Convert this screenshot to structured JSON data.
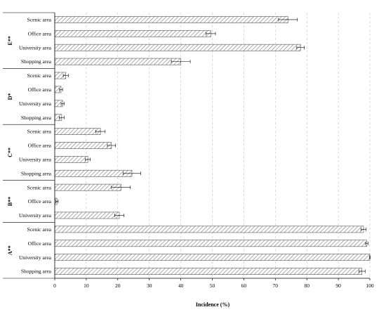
{
  "chart_data": {
    "type": "bar",
    "orientation": "horizontal",
    "xlabel": "Incidence (%)",
    "xlim": [
      0,
      100
    ],
    "xticks": [
      0,
      10,
      20,
      30,
      40,
      50,
      60,
      70,
      80,
      90,
      100
    ],
    "grid": "vertical dashed",
    "groups": [
      {
        "label": "E**",
        "bars": [
          {
            "category": "Scenic area",
            "value": 74,
            "error": 3
          },
          {
            "category": "Office area",
            "value": 49.5,
            "error": 1.5
          },
          {
            "category": "University area",
            "value": 78,
            "error": 1.2
          },
          {
            "category": "Shopping area",
            "value": 40,
            "error": 3
          }
        ]
      },
      {
        "label": "D*",
        "bars": [
          {
            "category": "Scenic area",
            "value": 3.5,
            "error": 0.8
          },
          {
            "category": "Office area",
            "value": 2,
            "error": 0.5
          },
          {
            "category": "University area",
            "value": 2.5,
            "error": 0.5
          },
          {
            "category": "Shopping area",
            "value": 2.2,
            "error": 0.8
          }
        ]
      },
      {
        "label": "C**",
        "bars": [
          {
            "category": "Scenic area",
            "value": 14.5,
            "error": 1.5
          },
          {
            "category": "Office area",
            "value": 18,
            "error": 1.3
          },
          {
            "category": "University area",
            "value": 10.5,
            "error": 0.8
          },
          {
            "category": "Shopping area",
            "value": 24.5,
            "error": 2.8
          }
        ]
      },
      {
        "label": "B**",
        "bars": [
          {
            "category": "Scenic area",
            "value": 21,
            "error": 3
          },
          {
            "category": "Office area",
            "value": 0.7,
            "error": 0.4
          },
          {
            "category": "University area",
            "value": 20.5,
            "error": 1.5
          }
        ]
      },
      {
        "label": "A**",
        "bars": [
          {
            "category": "Scenic area",
            "value": 98,
            "error": 0.8
          },
          {
            "category": "Office area",
            "value": 99,
            "error": 0.4
          },
          {
            "category": "University area",
            "value": 100,
            "error": 0.1
          },
          {
            "category": "Shopping area",
            "value": 97.5,
            "error": 1
          }
        ]
      }
    ]
  }
}
